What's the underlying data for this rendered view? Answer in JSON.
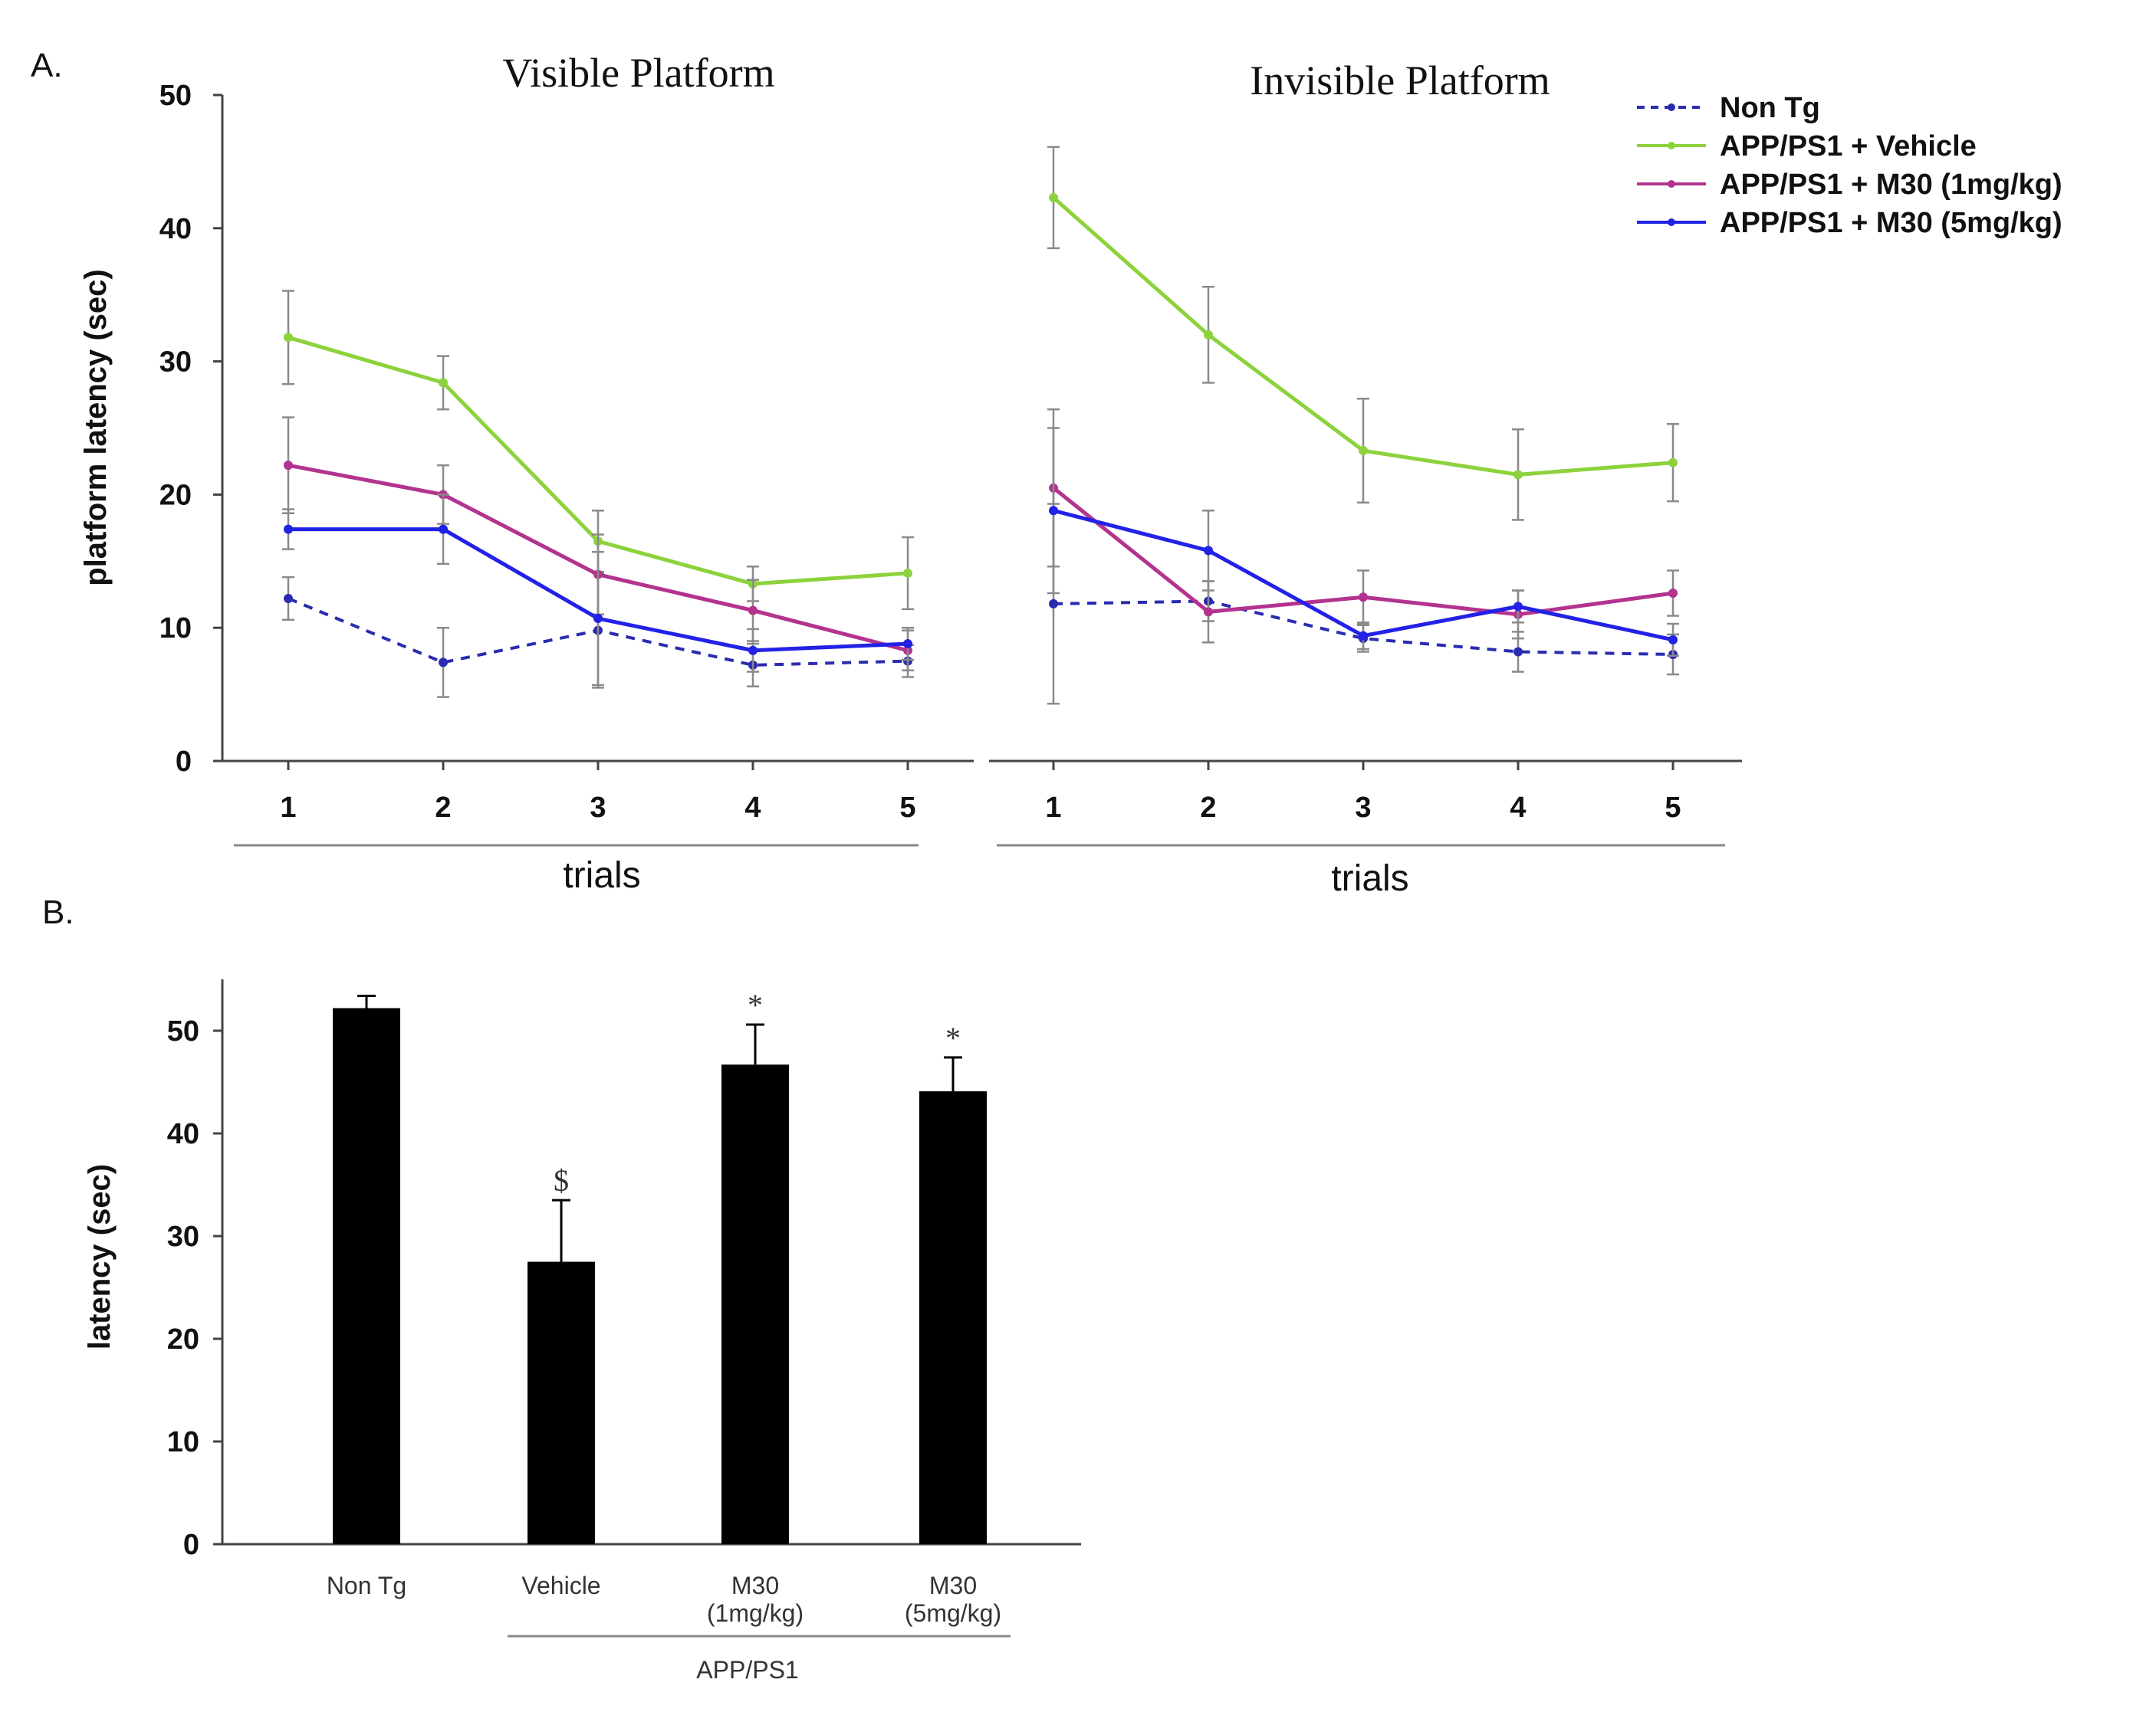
{
  "panel_a_label": "A.",
  "panel_b_label": "B.",
  "chart_data": [
    {
      "type": "line",
      "title": "Visible Platform",
      "xlabel": "trials",
      "ylabel": "platform latency (sec)",
      "categories": [
        "1",
        "2",
        "3",
        "4",
        "5"
      ],
      "ylim": [
        0,
        50
      ],
      "yticks": [
        "0",
        "10",
        "20",
        "30",
        "40",
        "50"
      ],
      "series": [
        {
          "name": "Non Tg",
          "color": "#2b2bb0",
          "dashed": true,
          "values": [
            12.2,
            7.4,
            9.8,
            7.2,
            7.5
          ],
          "errors": [
            1.6,
            2.6,
            4.3,
            1.6,
            1.2
          ]
        },
        {
          "name": "APP/PS1 + Vehicle",
          "color": "#8cd23c",
          "dashed": false,
          "values": [
            31.8,
            28.4,
            16.5,
            13.3,
            14.1
          ],
          "errors": [
            3.5,
            2.0,
            2.3,
            1.3,
            2.7
          ]
        },
        {
          "name": "APP/PS1 + M30 (1mg/kg)",
          "color": "#b3338f",
          "dashed": false,
          "values": [
            22.2,
            20.0,
            14.0,
            11.3,
            8.3
          ],
          "errors": [
            3.6,
            2.2,
            3.0,
            2.3,
            1.5
          ]
        },
        {
          "name": "APP/PS1 + M30 (5mg/kg)",
          "color": "#2222e6",
          "dashed": false,
          "values": [
            17.4,
            17.4,
            10.7,
            8.3,
            8.8
          ],
          "errors": [
            1.5,
            2.6,
            5.0,
            1.6,
            1.2
          ]
        }
      ]
    },
    {
      "type": "line",
      "title": "Invisible Platform",
      "xlabel": "trials",
      "ylabel": "",
      "categories": [
        "1",
        "2",
        "3",
        "4",
        "5"
      ],
      "ylim": [
        0,
        50
      ],
      "series": [
        {
          "name": "Non Tg",
          "color": "#2b2bb0",
          "dashed": true,
          "values": [
            11.8,
            12.0,
            9.2,
            8.2,
            8.0
          ],
          "errors": [
            7.5,
            1.5,
            1.0,
            1.5,
            1.5
          ]
        },
        {
          "name": "APP/PS1 + Vehicle",
          "color": "#8cd23c",
          "dashed": false,
          "values": [
            42.3,
            32.0,
            23.3,
            21.5,
            22.4
          ],
          "errors": [
            3.8,
            3.6,
            3.9,
            3.4,
            2.9
          ]
        },
        {
          "name": "APP/PS1 + M30 (1mg/kg)",
          "color": "#b3338f",
          "dashed": false,
          "values": [
            20.5,
            11.2,
            12.3,
            11.0,
            12.6
          ],
          "errors": [
            5.9,
            2.3,
            2.0,
            1.8,
            1.7
          ]
        },
        {
          "name": "APP/PS1 + M30 (5mg/kg)",
          "color": "#2222e6",
          "dashed": false,
          "values": [
            18.8,
            15.8,
            9.4,
            11.6,
            9.1
          ],
          "errors": [
            6.2,
            3.0,
            1.0,
            1.2,
            1.2
          ]
        }
      ]
    },
    {
      "type": "bar",
      "title": "",
      "xlabel": "",
      "ylabel": "latency (sec)",
      "categories": [
        "Non Tg",
        "Vehicle",
        "M30\n(1mg/kg)",
        "M30\n(5mg/kg)"
      ],
      "group_label": "APP/PS1",
      "ylim": [
        0,
        55
      ],
      "yticks": [
        "0",
        "10",
        "20",
        "30",
        "40",
        "50"
      ],
      "values": [
        52.2,
        27.5,
        46.7,
        44.1
      ],
      "errors": [
        1.2,
        6.0,
        3.9,
        3.3
      ],
      "annotations": [
        "",
        "$",
        "*",
        "*"
      ],
      "bar_color": "#000000"
    }
  ]
}
